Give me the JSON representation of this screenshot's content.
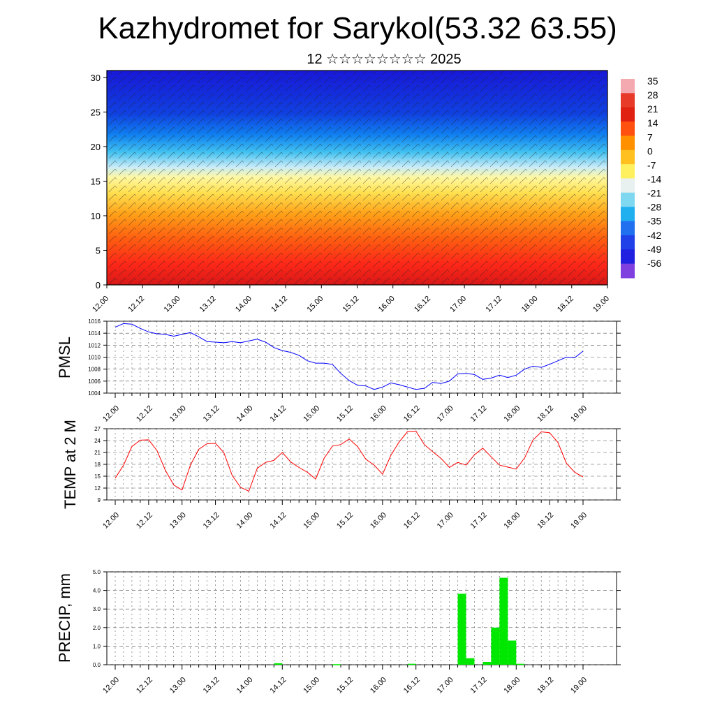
{
  "header": {
    "title": "Kazhydromet for Sarykol(53.32 63.55)",
    "subtitle": "12 ☆☆☆☆☆☆☆☆ 2025"
  },
  "time_labels": [
    "12.00",
    "12.12",
    "13.00",
    "13.12",
    "14.00",
    "14.12",
    "15.00",
    "15.12",
    "16.00",
    "16.12",
    "17.00",
    "17.12",
    "18.00",
    "18.12",
    "19.00"
  ],
  "chart_data": [
    {
      "type": "heatmap",
      "name": "temperature-cross-section",
      "x_tick_labels": [
        "12.00",
        "12.12",
        "13.00",
        "13.12",
        "14.00",
        "14.12",
        "15.00",
        "15.12",
        "16.00",
        "16.12",
        "17.00",
        "17.12",
        "18.00",
        "18.12",
        "19.00"
      ],
      "y_ticks": [
        0,
        5,
        10,
        15,
        20,
        25,
        30
      ],
      "ylim": [
        0,
        31
      ],
      "colorbar": {
        "labels": [
          "35",
          "28",
          "21",
          "14",
          "7",
          "0",
          "-7",
          "-14",
          "-21",
          "-28",
          "-35",
          "-42",
          "-49",
          "-56"
        ],
        "colors": [
          "#f4a8b0",
          "#e83a28",
          "#e02010",
          "#ff5010",
          "#ff9000",
          "#ffc020",
          "#fff060",
          "#e8f0f0",
          "#80d8f0",
          "#20b0f0",
          "#2070f0",
          "#2040e8",
          "#2020e0",
          "#8040e0"
        ]
      },
      "wind_barbs": true
    },
    {
      "type": "line",
      "name": "pmsl",
      "ylabel": "PMSL",
      "y_ticks": [
        1004,
        1006,
        1008,
        1010,
        1012,
        1014,
        1016
      ],
      "ylim": [
        1004,
        1016
      ],
      "line_color": "#0000ff",
      "x_tick_labels": [
        "12.00",
        "12.12",
        "13.00",
        "13.12",
        "14.00",
        "14.12",
        "15.00",
        "15.12",
        "16.00",
        "16.12",
        "17.00",
        "17.12",
        "18.00",
        "18.12",
        "19.00"
      ],
      "values": [
        1015.0,
        1015.6,
        1015.5,
        1014.8,
        1014.2,
        1013.9,
        1013.8,
        1013.5,
        1013.8,
        1014.1,
        1013.4,
        1012.6,
        1012.5,
        1012.4,
        1012.6,
        1012.4,
        1012.7,
        1013.0,
        1012.5,
        1011.6,
        1011.1,
        1010.8,
        1010.3,
        1009.4,
        1009.0,
        1009.0,
        1008.8,
        1007.3,
        1006.1,
        1005.3,
        1005.2,
        1004.6,
        1005.0,
        1005.7,
        1005.4,
        1005.0,
        1004.6,
        1004.8,
        1005.8,
        1005.6,
        1006.0,
        1007.2,
        1007.3,
        1007.1,
        1006.3,
        1006.5,
        1007.0,
        1006.6,
        1007.0,
        1008.0,
        1008.5,
        1008.3,
        1008.8,
        1009.4,
        1010.0,
        1009.9,
        1011.0
      ]
    },
    {
      "type": "line",
      "name": "temp-2m",
      "ylabel": "TEMP at 2 M",
      "y_ticks": [
        9,
        12,
        15,
        18,
        21,
        24,
        27
      ],
      "ylim": [
        9,
        27
      ],
      "line_color": "#ff0000",
      "x_tick_labels": [
        "12.00",
        "12.12",
        "13.00",
        "13.12",
        "14.00",
        "14.12",
        "15.00",
        "15.12",
        "16.00",
        "16.12",
        "17.00",
        "17.12",
        "18.00",
        "18.12",
        "19.00"
      ],
      "values": [
        14.5,
        17.8,
        22.5,
        24.1,
        24.2,
        21.5,
        16.5,
        12.8,
        11.5,
        17.8,
        21.8,
        23.2,
        23.3,
        21.0,
        15.2,
        12.2,
        11.2,
        17.0,
        18.5,
        19.0,
        21.0,
        18.6,
        17.2,
        16.0,
        14.3,
        19.5,
        22.6,
        23.0,
        24.4,
        22.5,
        19.3,
        17.8,
        15.5,
        20.3,
        23.7,
        26.3,
        26.4,
        23.0,
        21.2,
        19.5,
        17.2,
        18.5,
        17.8,
        20.4,
        22.1,
        19.9,
        17.8,
        17.3,
        16.8,
        19.6,
        24.1,
        26.2,
        26.0,
        23.5,
        18.3,
        16.0,
        14.8
      ]
    },
    {
      "type": "bar",
      "name": "precipitation",
      "ylabel": "PRECIP, mm",
      "y_ticks": [
        "0.0",
        "1.0",
        "2.0",
        "3.0",
        "4.0",
        "5.0"
      ],
      "ylim": [
        0,
        5
      ],
      "bar_color": "#00e800",
      "x_tick_labels": [
        "12.00",
        "12.12",
        "13.00",
        "13.12",
        "14.00",
        "14.12",
        "15.00",
        "15.12",
        "16.00",
        "16.12",
        "17.00",
        "17.12",
        "18.00",
        "18.12",
        "19.00"
      ],
      "values": [
        0,
        0,
        0,
        0,
        0,
        0,
        0,
        0,
        0,
        0,
        0,
        0,
        0,
        0,
        0,
        0,
        0,
        0,
        0,
        0.08,
        0,
        0,
        0,
        0,
        0,
        0,
        0.03,
        0,
        0,
        0,
        0,
        0,
        0,
        0,
        0,
        0.05,
        0,
        0,
        0,
        0,
        0,
        3.82,
        0.35,
        0,
        0.15,
        2.0,
        4.68,
        1.3,
        0.05,
        0,
        0,
        0,
        0,
        0,
        0,
        0,
        0
      ]
    }
  ]
}
